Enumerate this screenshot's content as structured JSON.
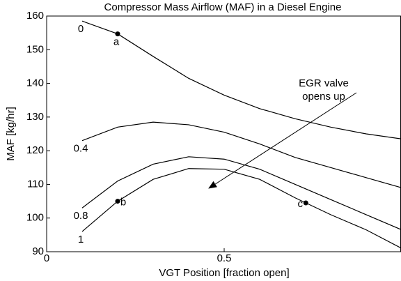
{
  "chart_data": {
    "type": "line",
    "title": "Compressor Mass Airflow (MAF) in a Diesel Engine",
    "xlabel": "VGT Position [fraction open]",
    "ylabel": "MAF [kg/hr]",
    "x": [
      0.1,
      0.2,
      0.3,
      0.4,
      0.5,
      0.6,
      0.7,
      0.8,
      0.9,
      1.0
    ],
    "series": [
      {
        "name": "0",
        "color": "#000000",
        "values": [
          158.5,
          154.7,
          148,
          141.5,
          136.5,
          132.5,
          129.5,
          127,
          125,
          123.5
        ]
      },
      {
        "name": "0.4",
        "color": "#000000",
        "values": [
          123,
          127,
          128.5,
          127.7,
          125.5,
          122,
          118,
          115,
          112,
          109
        ]
      },
      {
        "name": "0.8",
        "color": "#000000",
        "values": [
          103,
          111,
          116,
          118.2,
          117.5,
          114.5,
          110,
          105.5,
          101,
          96.5
        ]
      },
      {
        "name": "1",
        "color": "#000000",
        "values": [
          96,
          105,
          111.5,
          114.7,
          114.5,
          111.5,
          106,
          101,
          96.5,
          91
        ]
      }
    ],
    "points": [
      {
        "label": "a",
        "x": 0.2,
        "y": 154.7
      },
      {
        "label": "b",
        "x": 0.2,
        "y": 105
      },
      {
        "label": "c",
        "x": 0.73,
        "y": 104.5
      }
    ],
    "annotation": [
      "EGR valve",
      "opens up"
    ],
    "xlim": [
      0,
      1
    ],
    "xticks": [
      0,
      0.5
    ],
    "ylim": [
      90,
      160
    ],
    "yticks": [
      90,
      100,
      110,
      120,
      130,
      140,
      150,
      160
    ],
    "grid": false
  }
}
